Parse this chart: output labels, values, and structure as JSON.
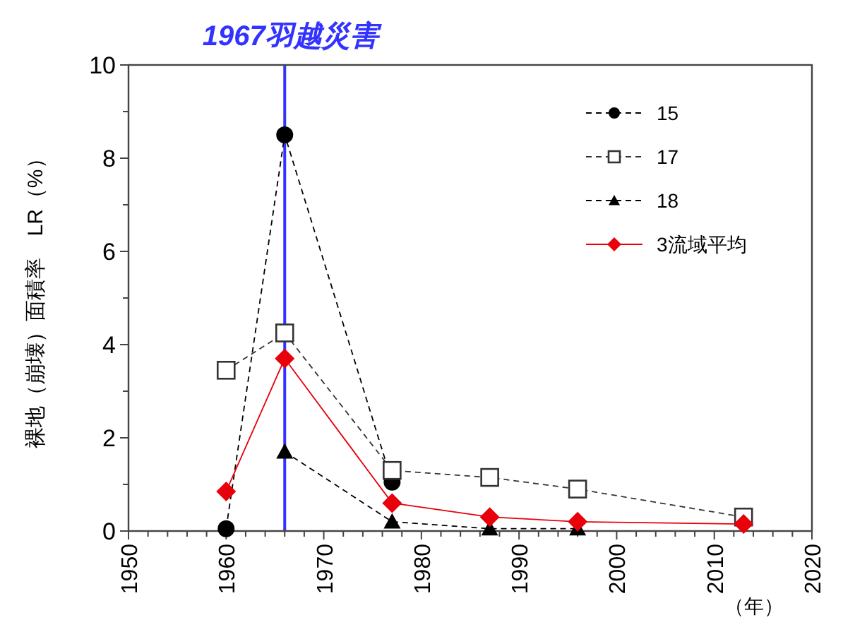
{
  "chart_data": {
    "type": "line",
    "ylabel": "裸地（崩壊）面積率　LR（%）",
    "xlabel": "（年）",
    "x": [
      1960,
      1966,
      1977,
      1987,
      1996,
      2013
    ],
    "xlim": [
      1950,
      2020
    ],
    "xticks": [
      1950,
      1960,
      1970,
      1980,
      1990,
      2000,
      2010,
      2020
    ],
    "ylim": [
      0,
      10
    ],
    "yticks": [
      0,
      2,
      4,
      6,
      8,
      10
    ],
    "grid": false,
    "legend": "top right",
    "line_style": "dashed",
    "series": [
      {
        "name": "15",
        "color": "#000000",
        "marker": "circle",
        "values": [
          0.05,
          8.5,
          1.05,
          null,
          null,
          null
        ]
      },
      {
        "name": "17",
        "color": "#333333",
        "marker": "square",
        "values": [
          3.45,
          4.25,
          1.3,
          1.15,
          0.9,
          0.3
        ]
      },
      {
        "name": "18",
        "color": "#000000",
        "marker": "triangle",
        "values": [
          null,
          1.7,
          0.2,
          0.05,
          0.05,
          null
        ]
      },
      {
        "name": "3流域平均",
        "color": "#e8000b",
        "marker": "diamond",
        "line_style": "solid",
        "values": [
          0.85,
          3.7,
          0.6,
          0.3,
          0.2,
          0.15
        ]
      }
    ],
    "ref_lines": [
      {
        "axis": "x",
        "value": 1966,
        "label": "1967羽越災害",
        "color": "#3333ff"
      }
    ]
  }
}
